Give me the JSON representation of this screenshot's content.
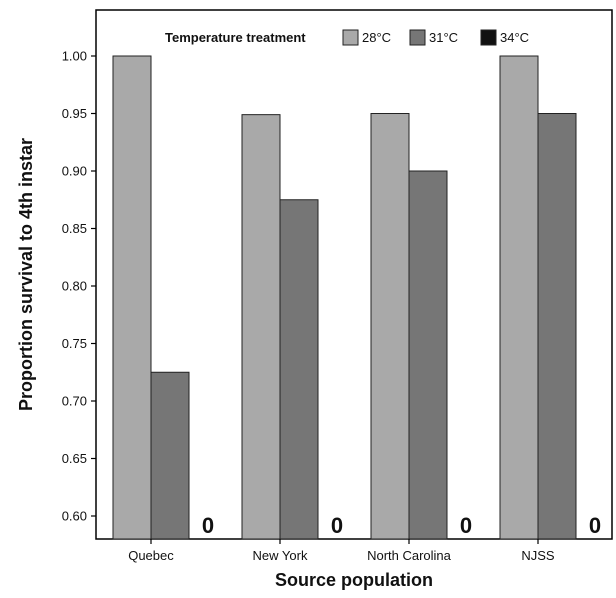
{
  "chart_data": {
    "type": "bar",
    "xlabel": "Source population",
    "ylabel": "Proportion survival to 4th instar",
    "categories": [
      "Quebec",
      "New York",
      "North Carolina",
      "NJSS"
    ],
    "legend": {
      "title": "Temperature treatment",
      "placement": "top"
    },
    "series": [
      {
        "name": "28°C",
        "color": "#a9a9a9",
        "values": [
          1.0,
          0.949,
          0.95,
          1.0
        ]
      },
      {
        "name": "31°C",
        "color": "#767676",
        "values": [
          0.725,
          0.875,
          0.9,
          0.95
        ]
      },
      {
        "name": "34°C",
        "color": "#111111",
        "values": [
          0,
          0,
          0,
          0
        ]
      }
    ],
    "annotations": [
      "0",
      "0",
      "0",
      "0"
    ],
    "ylim": [
      0.58,
      1.04
    ],
    "yticks": [
      "0.60",
      "0.65",
      "0.70",
      "0.75",
      "0.80",
      "0.85",
      "0.90",
      "0.95",
      "1.00"
    ],
    "grid": false
  }
}
